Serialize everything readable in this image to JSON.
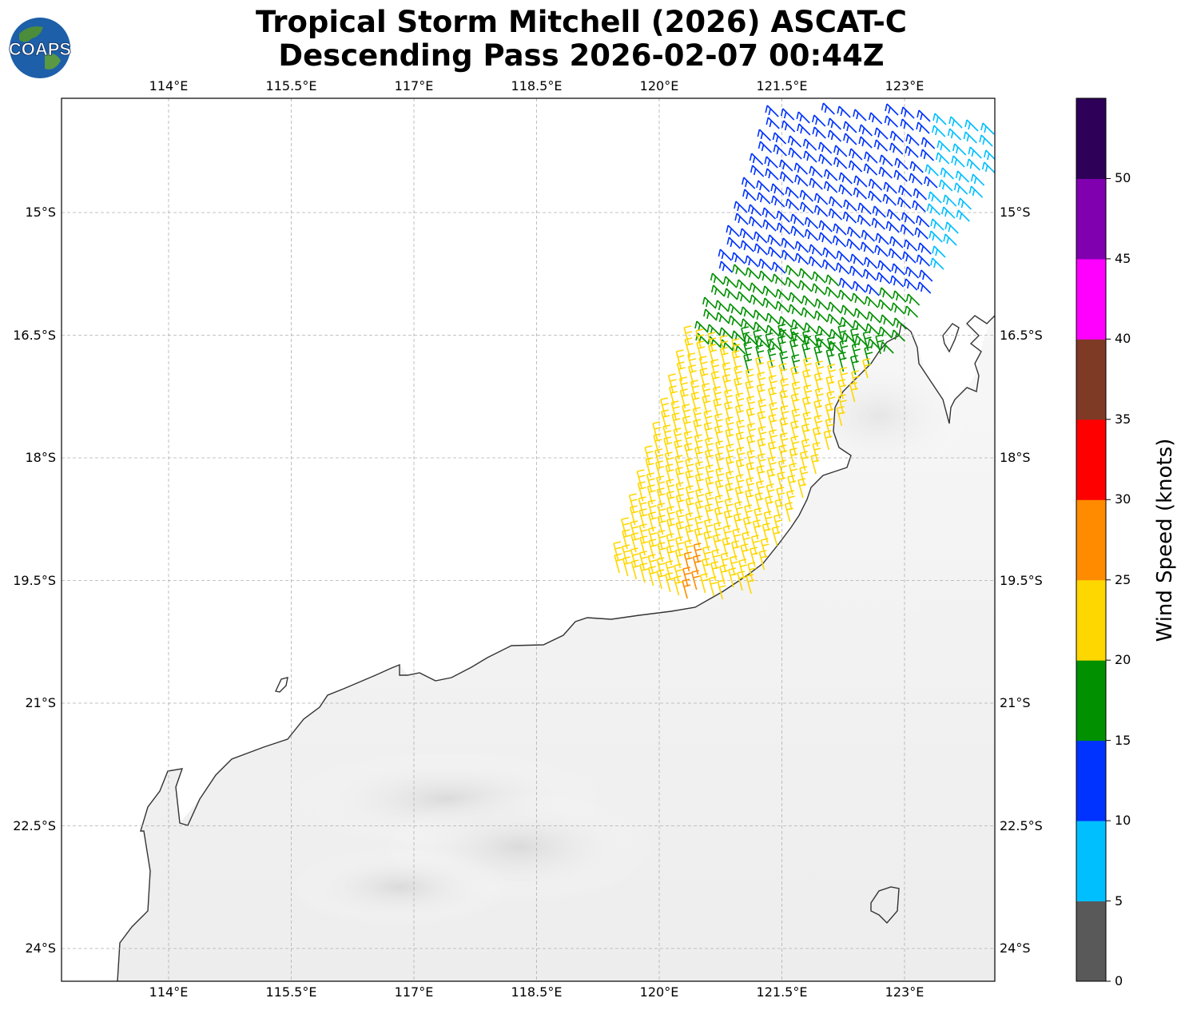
{
  "title": {
    "line1": "Tropical Storm Mitchell (2026) ASCAT-C",
    "line2": "Descending Pass 2026-02-07 00:44Z"
  },
  "logo": {
    "text": "COAPS",
    "icon": "globe-logo-icon"
  },
  "map": {
    "lon_range": [
      112.7,
      124.1
    ],
    "lat_range": [
      -24.4,
      -13.6
    ],
    "top_lon_labels": [
      "114°E",
      "115.5°E",
      "117°E",
      "118.5°E",
      "120°E",
      "121.5°E",
      "123°E"
    ],
    "bottom_lon_labels": [
      "114°E",
      "115.5°E",
      "117°E",
      "118.5°E",
      "120°E",
      "121.5°E",
      "123°E"
    ],
    "left_lat_labels": [
      "15°S",
      "16.5°S",
      "18°S",
      "19.5°S",
      "21°S",
      "22.5°S",
      "24°S"
    ],
    "right_lat_labels": [
      "15°S",
      "16.5°S",
      "18°S",
      "19.5°S",
      "21°S",
      "22.5°S",
      "24°S"
    ],
    "gridlines": true,
    "background": "grayscale infrared land imagery",
    "coastline": "Western Australia (Pilbara and Kimberley coast)"
  },
  "colorbar": {
    "title": "Wind Speed (knots)",
    "ticks": [
      "0",
      "5",
      "10",
      "15",
      "20",
      "25",
      "30",
      "35",
      "40",
      "45",
      "50"
    ],
    "colors": [
      "#595959",
      "#00bfff",
      "#0033ff",
      "#009000",
      "#ffd700",
      "#ff8c00",
      "#ff0000",
      "#7f3a26",
      "#ff00ff",
      "#8000b0",
      "#2e0058"
    ]
  },
  "wind_barbs": {
    "legend_note": "barb color by wind speed bin",
    "zones": [
      {
        "speed_bin": "5-10",
        "color": "#00bfff"
      },
      {
        "speed_bin": "10-15",
        "color": "#0033ff"
      },
      {
        "speed_bin": "15-20",
        "color": "#009000"
      },
      {
        "speed_bin": "20-25",
        "color": "#ffd700"
      },
      {
        "speed_bin": "25-30",
        "color": "#ff8c00"
      }
    ]
  }
}
